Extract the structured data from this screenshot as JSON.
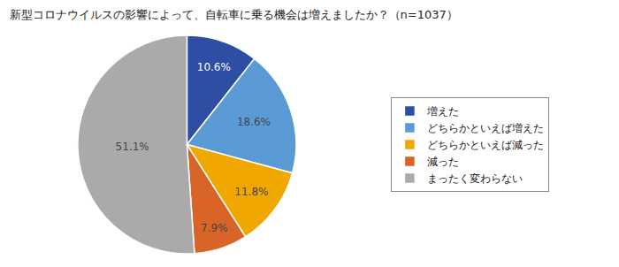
{
  "chart_data": {
    "type": "pie",
    "title": "新型コロナウイルスの影響によって、自転車に乗る機会は増えましたか？（n=1037）",
    "categories": [
      "増えた",
      "どちらかといえば増えた",
      "どちらかといえば減った",
      "減った",
      "まったく変わらない"
    ],
    "values": [
      10.6,
      18.6,
      11.8,
      7.9,
      51.1
    ],
    "value_labels": [
      "10.6%",
      "18.6%",
      "11.8%",
      "7.9%",
      "51.1%"
    ],
    "colors": [
      "#2E4EA3",
      "#5B9BD5",
      "#F0A800",
      "#D96428",
      "#AAAAAA"
    ],
    "data_labels": true,
    "legend": "right"
  }
}
